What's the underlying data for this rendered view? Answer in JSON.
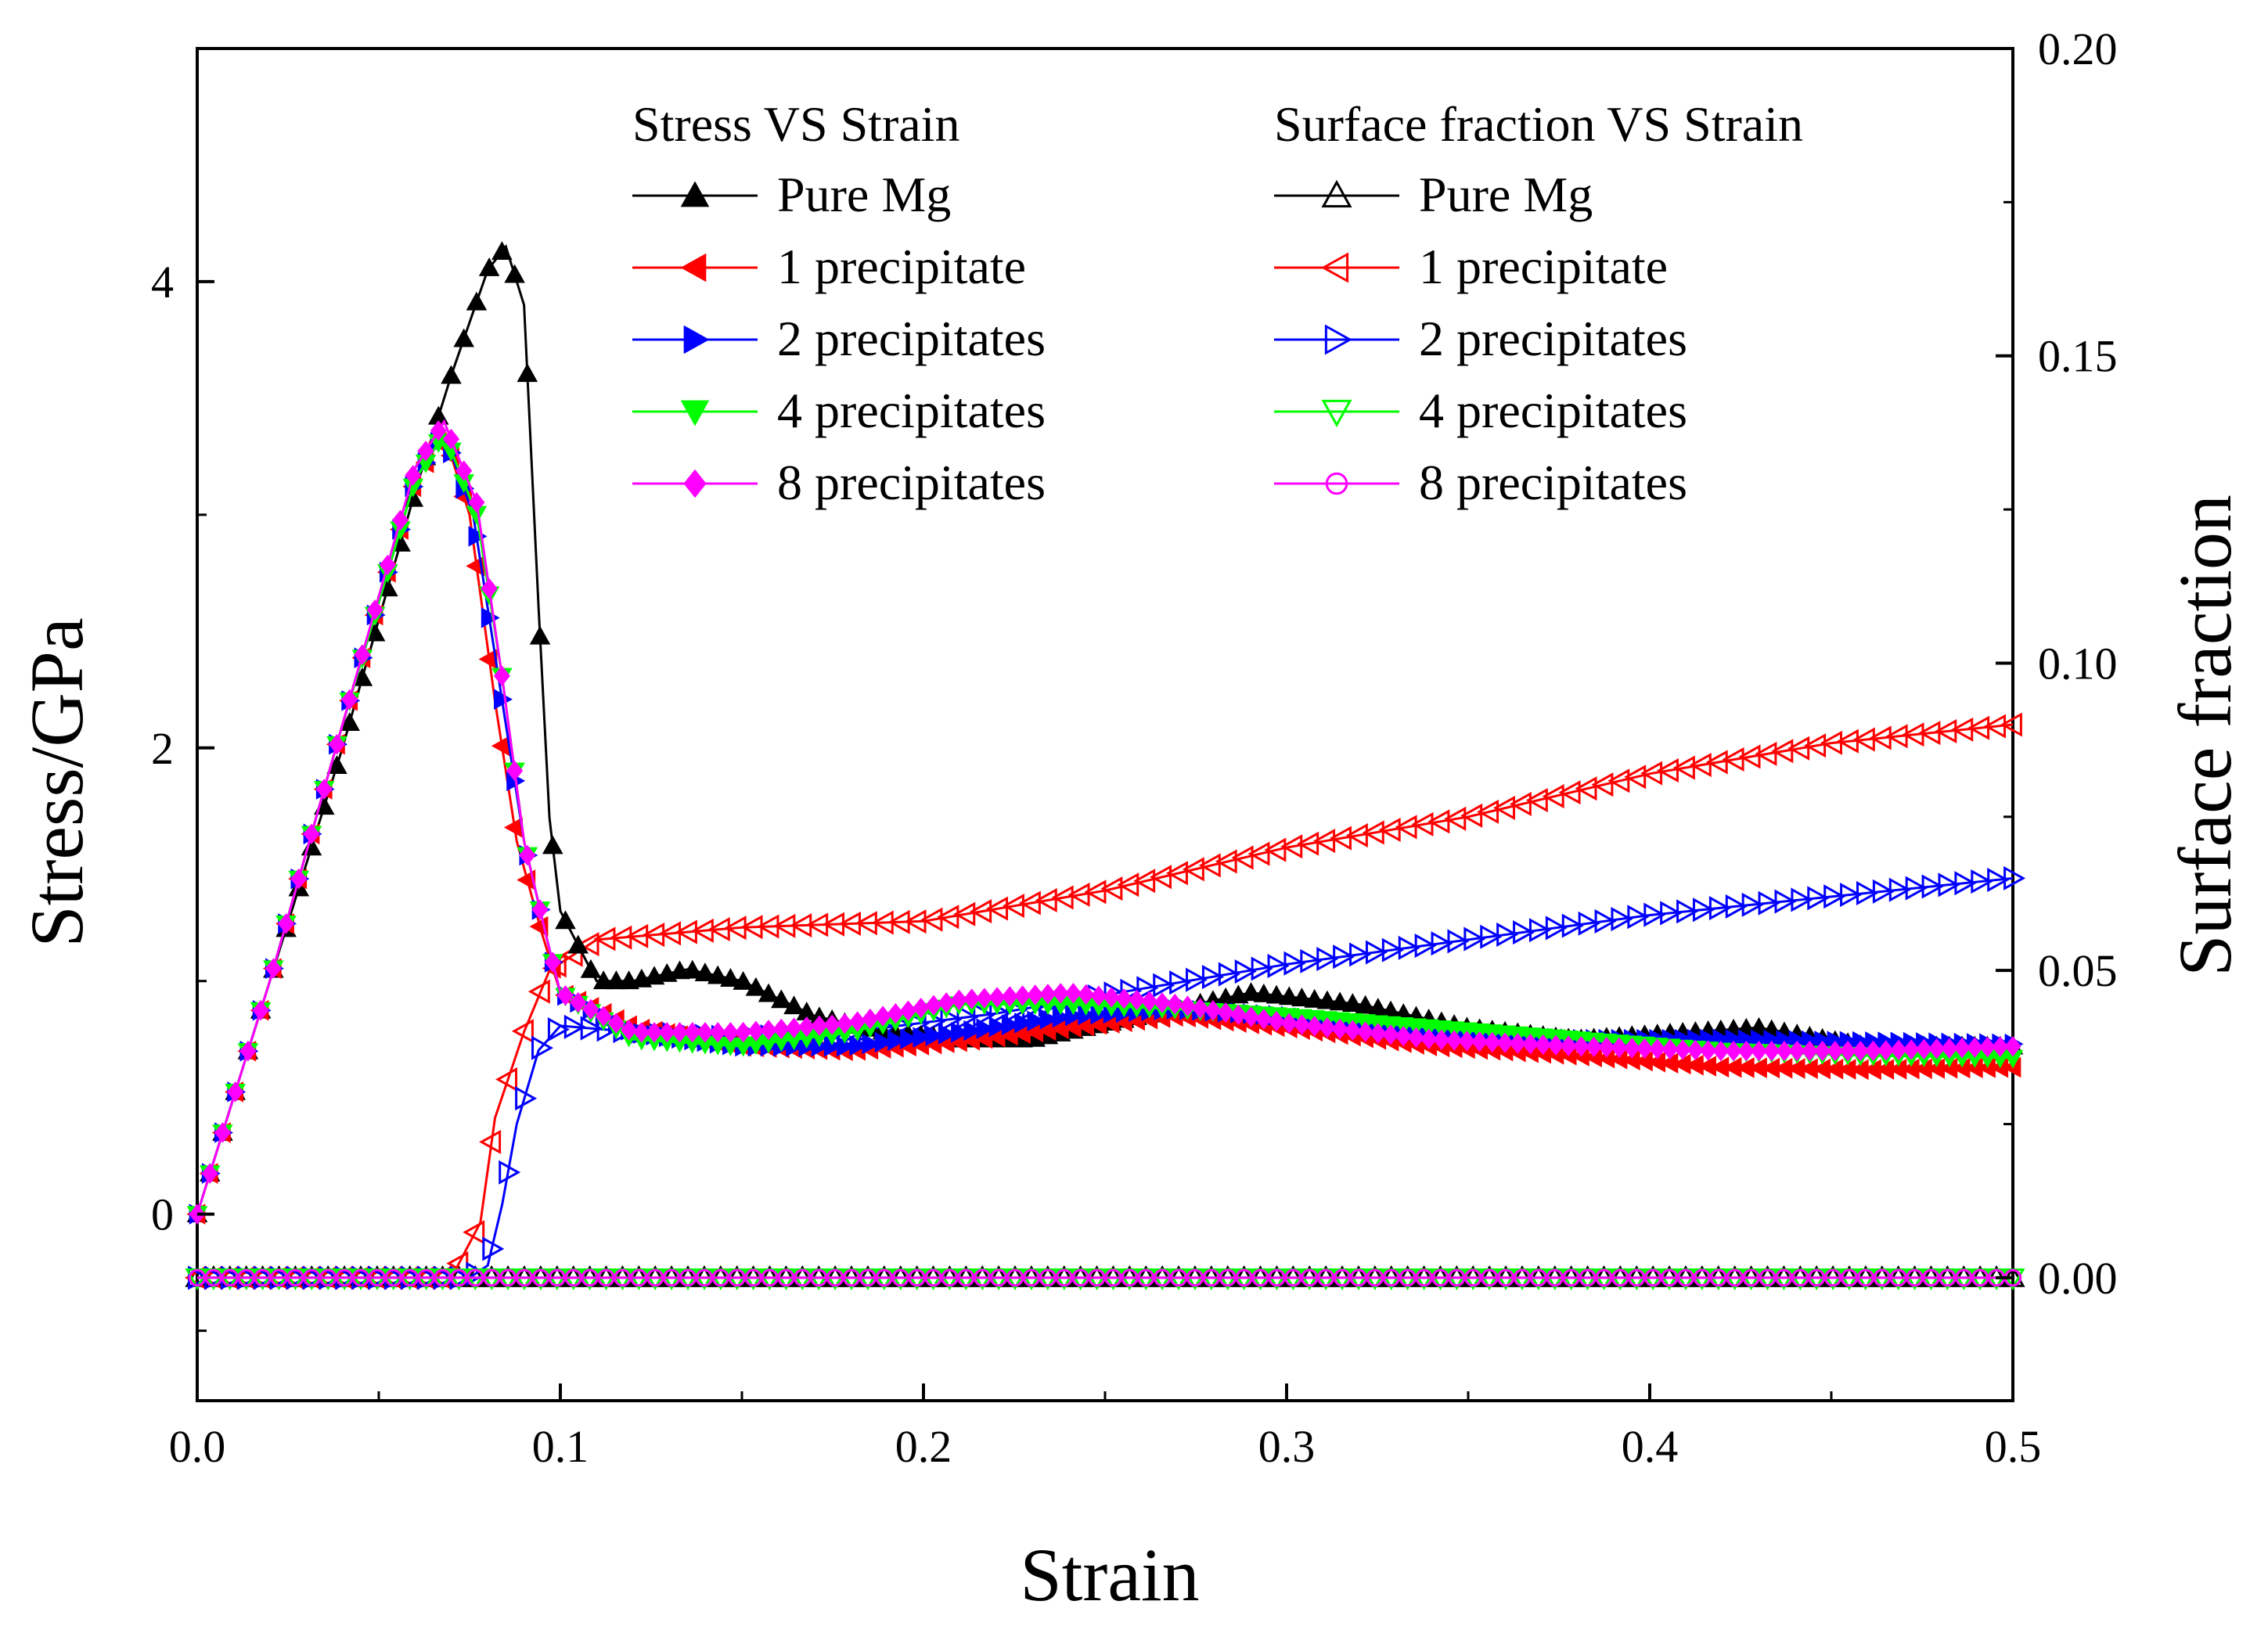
{
  "chart_data": {
    "type": "line",
    "xlabel": "Strain",
    "ylabel_left": "Stress/GPa",
    "ylabel_right": "Surface fraction",
    "xlim": [
      0,
      0.5
    ],
    "ylim_left": [
      -0.8,
      5.0
    ],
    "ylim_right": [
      -0.02,
      0.2
    ],
    "x_ticks": [
      0.0,
      0.1,
      0.2,
      0.3,
      0.4,
      0.5
    ],
    "x_tick_labels": [
      "0.0",
      "0.1",
      "0.2",
      "0.3",
      "0.4",
      "0.5"
    ],
    "y_left_ticks": [
      0,
      2,
      4
    ],
    "y_left_tick_labels": [
      "0",
      "2",
      "4"
    ],
    "y_right_ticks": [
      0.0,
      0.05,
      0.1,
      0.15,
      0.2
    ],
    "y_right_tick_labels": [
      "0.00",
      "0.05",
      "0.10",
      "0.15",
      "0.20"
    ],
    "grid": false,
    "legend": {
      "placement": "top",
      "stress_title": "Stress VS Strain",
      "surface_title": "Surface fraction VS Strain"
    },
    "stress_series": [
      {
        "name": "Pure Mg",
        "color": "#000000",
        "marker": "triangle-up-filled",
        "points": [
          [
            0,
            0
          ],
          [
            0.02,
            1.0
          ],
          [
            0.04,
            2.0
          ],
          [
            0.06,
            3.1
          ],
          [
            0.07,
            3.6
          ],
          [
            0.08,
            4.05
          ],
          [
            0.085,
            4.15
          ],
          [
            0.09,
            3.9
          ],
          [
            0.094,
            2.6
          ],
          [
            0.097,
            1.7
          ],
          [
            0.1,
            1.3
          ],
          [
            0.11,
            1.0
          ],
          [
            0.12,
            1.0
          ],
          [
            0.135,
            1.05
          ],
          [
            0.15,
            1.0
          ],
          [
            0.17,
            0.85
          ],
          [
            0.19,
            0.78
          ],
          [
            0.21,
            0.75
          ],
          [
            0.23,
            0.75
          ],
          [
            0.26,
            0.85
          ],
          [
            0.29,
            0.95
          ],
          [
            0.32,
            0.9
          ],
          [
            0.35,
            0.8
          ],
          [
            0.38,
            0.75
          ],
          [
            0.41,
            0.78
          ],
          [
            0.43,
            0.8
          ],
          [
            0.46,
            0.72
          ],
          [
            0.5,
            0.72
          ]
        ]
      },
      {
        "name": "1 precipitate",
        "color": "#ff0000",
        "marker": "triangle-left-filled",
        "points": [
          [
            0,
            0
          ],
          [
            0.02,
            1.0
          ],
          [
            0.04,
            2.1
          ],
          [
            0.06,
            3.15
          ],
          [
            0.068,
            3.35
          ],
          [
            0.075,
            3.0
          ],
          [
            0.082,
            2.2
          ],
          [
            0.088,
            1.6
          ],
          [
            0.095,
            1.2
          ],
          [
            0.1,
            0.95
          ],
          [
            0.12,
            0.8
          ],
          [
            0.15,
            0.72
          ],
          [
            0.18,
            0.7
          ],
          [
            0.21,
            0.74
          ],
          [
            0.24,
            0.8
          ],
          [
            0.27,
            0.85
          ],
          [
            0.3,
            0.8
          ],
          [
            0.34,
            0.72
          ],
          [
            0.38,
            0.68
          ],
          [
            0.42,
            0.63
          ],
          [
            0.46,
            0.62
          ],
          [
            0.5,
            0.63
          ]
        ]
      },
      {
        "name": "2 precipitates",
        "color": "#0000ff",
        "marker": "triangle-right-filled",
        "points": [
          [
            0,
            0
          ],
          [
            0.02,
            1.0
          ],
          [
            0.04,
            2.1
          ],
          [
            0.06,
            3.15
          ],
          [
            0.068,
            3.35
          ],
          [
            0.076,
            3.0
          ],
          [
            0.083,
            2.3
          ],
          [
            0.09,
            1.6
          ],
          [
            0.096,
            1.2
          ],
          [
            0.1,
            0.95
          ],
          [
            0.12,
            0.78
          ],
          [
            0.15,
            0.72
          ],
          [
            0.18,
            0.72
          ],
          [
            0.21,
            0.78
          ],
          [
            0.24,
            0.85
          ],
          [
            0.27,
            0.88
          ],
          [
            0.3,
            0.85
          ],
          [
            0.34,
            0.78
          ],
          [
            0.38,
            0.75
          ],
          [
            0.42,
            0.75
          ],
          [
            0.46,
            0.74
          ],
          [
            0.5,
            0.73
          ]
        ]
      },
      {
        "name": "4 precipitates",
        "color": "#00ff00",
        "marker": "triangle-down-filled",
        "points": [
          [
            0,
            0
          ],
          [
            0.02,
            1.0
          ],
          [
            0.04,
            2.1
          ],
          [
            0.06,
            3.15
          ],
          [
            0.068,
            3.35
          ],
          [
            0.077,
            3.0
          ],
          [
            0.084,
            2.3
          ],
          [
            0.09,
            1.6
          ],
          [
            0.096,
            1.2
          ],
          [
            0.1,
            0.95
          ],
          [
            0.12,
            0.75
          ],
          [
            0.15,
            0.72
          ],
          [
            0.18,
            0.78
          ],
          [
            0.21,
            0.9
          ],
          [
            0.24,
            0.9
          ],
          [
            0.27,
            0.88
          ],
          [
            0.3,
            0.85
          ],
          [
            0.34,
            0.8
          ],
          [
            0.38,
            0.75
          ],
          [
            0.42,
            0.7
          ],
          [
            0.46,
            0.68
          ],
          [
            0.5,
            0.67
          ]
        ]
      },
      {
        "name": "8 precipitates",
        "color": "#ff00ff",
        "marker": "diamond-filled",
        "points": [
          [
            0,
            0
          ],
          [
            0.02,
            1.0
          ],
          [
            0.04,
            2.1
          ],
          [
            0.06,
            3.2
          ],
          [
            0.068,
            3.4
          ],
          [
            0.077,
            3.05
          ],
          [
            0.084,
            2.3
          ],
          [
            0.09,
            1.6
          ],
          [
            0.096,
            1.2
          ],
          [
            0.1,
            0.95
          ],
          [
            0.12,
            0.78
          ],
          [
            0.15,
            0.78
          ],
          [
            0.18,
            0.82
          ],
          [
            0.21,
            0.92
          ],
          [
            0.24,
            0.95
          ],
          [
            0.27,
            0.9
          ],
          [
            0.3,
            0.82
          ],
          [
            0.34,
            0.75
          ],
          [
            0.38,
            0.72
          ],
          [
            0.42,
            0.7
          ],
          [
            0.46,
            0.7
          ],
          [
            0.5,
            0.72
          ]
        ]
      }
    ],
    "surface_series": [
      {
        "name": "Pure Mg",
        "color": "#000000",
        "marker": "triangle-up-open",
        "points": [
          [
            0,
            0.0
          ],
          [
            0.5,
            0.0
          ]
        ]
      },
      {
        "name": "1 precipitate",
        "color": "#ff0000",
        "marker": "triangle-left-open",
        "points": [
          [
            0,
            0.0
          ],
          [
            0.07,
            0.0
          ],
          [
            0.078,
            0.009
          ],
          [
            0.082,
            0.026
          ],
          [
            0.09,
            0.04
          ],
          [
            0.097,
            0.05
          ],
          [
            0.11,
            0.055
          ],
          [
            0.15,
            0.057
          ],
          [
            0.2,
            0.058
          ],
          [
            0.25,
            0.063
          ],
          [
            0.3,
            0.07
          ],
          [
            0.35,
            0.075
          ],
          [
            0.4,
            0.082
          ],
          [
            0.45,
            0.087
          ],
          [
            0.5,
            0.09
          ]
        ]
      },
      {
        "name": "2 precipitates",
        "color": "#0000ff",
        "marker": "triangle-right-open",
        "points": [
          [
            0,
            0.0
          ],
          [
            0.075,
            0.0
          ],
          [
            0.08,
            0.002
          ],
          [
            0.084,
            0.012
          ],
          [
            0.088,
            0.025
          ],
          [
            0.094,
            0.037
          ],
          [
            0.1,
            0.041
          ],
          [
            0.12,
            0.04
          ],
          [
            0.15,
            0.039
          ],
          [
            0.18,
            0.04
          ],
          [
            0.22,
            0.043
          ],
          [
            0.26,
            0.047
          ],
          [
            0.3,
            0.051
          ],
          [
            0.35,
            0.055
          ],
          [
            0.4,
            0.059
          ],
          [
            0.45,
            0.062
          ],
          [
            0.5,
            0.065
          ]
        ]
      },
      {
        "name": "4 precipitates",
        "color": "#00ff00",
        "marker": "triangle-down-open",
        "points": [
          [
            0,
            0.0
          ],
          [
            0.5,
            0.0
          ]
        ]
      },
      {
        "name": "8 precipitates",
        "color": "#ff00ff",
        "marker": "circle-open",
        "points": [
          [
            0,
            0.0
          ],
          [
            0.5,
            0.0
          ]
        ]
      }
    ]
  }
}
